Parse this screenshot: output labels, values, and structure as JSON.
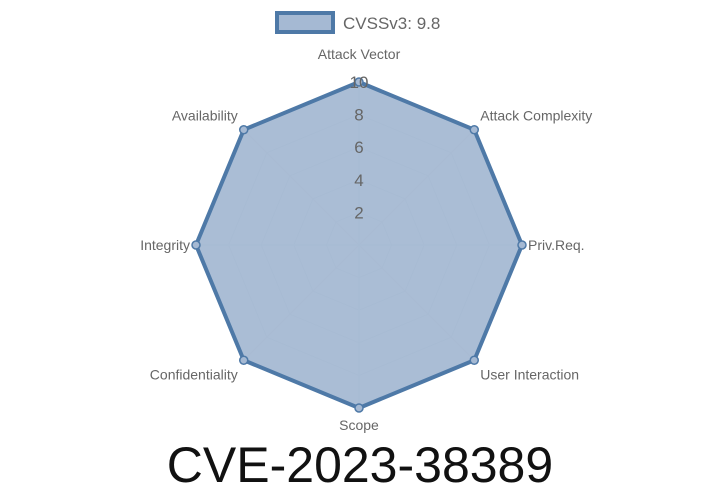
{
  "chart_data": {
    "type": "radar",
    "title": "CVE-2023-38389",
    "categories": [
      "Attack Vector",
      "Attack Complexity",
      "Priv.Req.",
      "User Interaction",
      "Scope",
      "Confidentiality",
      "Integrity",
      "Availability"
    ],
    "series": [
      {
        "name": "CVSSv3: 9.8",
        "values": [
          10,
          10,
          10,
          10,
          10,
          10,
          10,
          10
        ]
      }
    ],
    "rlim": [
      0,
      10
    ],
    "ticks": [
      "2",
      "4",
      "6",
      "8",
      "10"
    ],
    "grid": true,
    "legend": "top",
    "colors": {
      "line": "#4e79a7",
      "fill": "#a5b9d3",
      "grid": "#c8ccd2"
    }
  }
}
